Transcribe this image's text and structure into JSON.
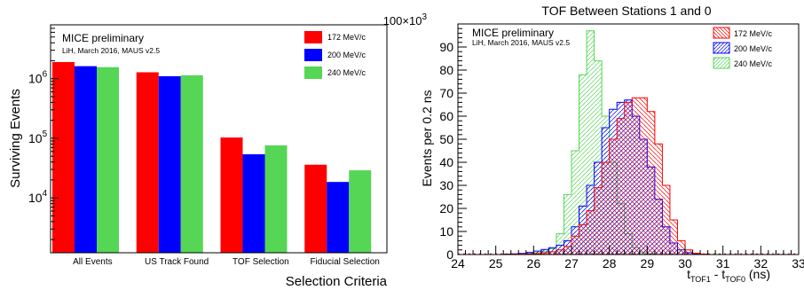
{
  "chart_data": [
    {
      "type": "bar",
      "title": "",
      "xlabel": "Selection Criteria",
      "ylabel": "Surviving Events",
      "y_scale": "log",
      "ylim": [
        1200,
        8000000
      ],
      "y_ticks": [
        {
          "value": 10000,
          "base": "10",
          "exp": "4"
        },
        {
          "value": 100000,
          "base": "10",
          "exp": "5"
        },
        {
          "value": 1000000,
          "base": "10",
          "exp": "6"
        }
      ],
      "categories": [
        "All Events",
        "US Track Found",
        "TOF Selection",
        "Fiducial Selection"
      ],
      "series": [
        {
          "name": "172 MeV/c",
          "color": "#ff0000",
          "values": [
            1900000,
            1280000,
            103000,
            36000
          ]
        },
        {
          "name": "200 MeV/c",
          "color": "#0000ff",
          "values": [
            1620000,
            1100000,
            54000,
            18500
          ]
        },
        {
          "name": "240 MeV/c",
          "color": "#55d655",
          "values": [
            1560000,
            1140000,
            76000,
            29000
          ]
        }
      ],
      "annotations": {
        "title": "MICE preliminary",
        "subtitle": "LiH, March 2016, MAUS v2.5"
      },
      "legend_position": "top-right",
      "grid": false
    },
    {
      "type": "histogram",
      "title": "TOF Between Stations 1 and 0",
      "xlabel": {
        "text": "t",
        "sub1": "TOF1",
        "mid": " - t",
        "sub2": "TOF0",
        "unit": " (ns)"
      },
      "ylabel": "Events per 0.2 ns",
      "y_multiplier": {
        "base": "100×10",
        "exp": "3"
      },
      "xlim": [
        24,
        33
      ],
      "ylim": [
        0,
        100
      ],
      "x_ticks": [
        "24",
        "25",
        "26",
        "27",
        "28",
        "29",
        "30",
        "31",
        "32",
        "33"
      ],
      "y_ticks": [
        "0",
        "10",
        "20",
        "30",
        "40",
        "50",
        "60",
        "70",
        "80",
        "90"
      ],
      "bin_width": 0.2,
      "series": [
        {
          "name": "172 MeV/c",
          "color": "#ff0000",
          "hatch": "back",
          "x": [
            25.2,
            25.4,
            25.6,
            25.8,
            26.0,
            26.2,
            26.4,
            26.6,
            26.8,
            27.0,
            27.2,
            27.4,
            27.6,
            27.8,
            28.0,
            28.2,
            28.4,
            28.6,
            28.8,
            29.0,
            29.2,
            29.4,
            29.6,
            29.8,
            30.0,
            30.2,
            30.4
          ],
          "values": [
            0.1,
            0.1,
            0.2,
            0.3,
            0.4,
            0.8,
            1.2,
            2,
            3.5,
            8,
            13,
            19,
            29,
            40,
            50,
            59,
            66,
            68,
            68,
            62,
            48,
            30,
            15,
            6,
            2,
            0.6,
            0.2
          ]
        },
        {
          "name": "200 MeV/c",
          "color": "#0000ff",
          "hatch": "forward",
          "x": [
            25.2,
            25.4,
            25.6,
            25.8,
            26.0,
            26.2,
            26.4,
            26.6,
            26.8,
            27.0,
            27.2,
            27.4,
            27.6,
            27.8,
            28.0,
            28.2,
            28.4,
            28.6,
            28.8,
            29.0,
            29.2,
            29.4,
            29.6,
            29.8,
            30.0,
            30.2
          ],
          "values": [
            0.2,
            0.3,
            0.5,
            0.9,
            1.5,
            2.2,
            3,
            4,
            6,
            12,
            21,
            30,
            40,
            55,
            63,
            66,
            67,
            60,
            50,
            38,
            24,
            12,
            5,
            2,
            0.8,
            0.3
          ]
        },
        {
          "name": "240 MeV/c",
          "color": "#55d655",
          "hatch": "forward",
          "x": [
            25.4,
            25.6,
            25.8,
            26.0,
            26.2,
            26.4,
            26.6,
            26.8,
            27.0,
            27.2,
            27.4,
            27.6,
            27.8,
            28.0,
            28.2,
            28.4,
            28.6,
            28.8,
            29.0,
            29.2
          ],
          "values": [
            0.1,
            0.2,
            0.5,
            0.8,
            1.5,
            2.5,
            9,
            26,
            45,
            78,
            97,
            84,
            60,
            40,
            22,
            9,
            3,
            1,
            0.3,
            0.1
          ]
        }
      ],
      "annotations": {
        "title": "MICE preliminary",
        "subtitle": "LiH, March 2016, MAUS v2.5"
      },
      "legend_position": "top-right",
      "grid": false
    }
  ]
}
